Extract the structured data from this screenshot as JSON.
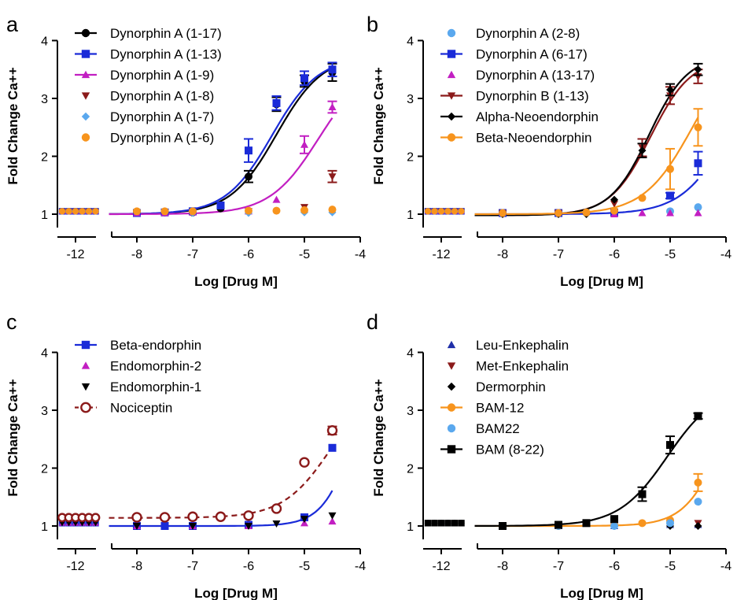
{
  "colors": {
    "black": "#000000",
    "blue": "#1a2bd8",
    "magenta": "#c21fc2",
    "darkred": "#8b1a1a",
    "lightblue": "#5aa8ee",
    "orange": "#f7941d",
    "navy": "#1f2fa8"
  },
  "chart_data": [
    {
      "panel": "a",
      "type": "scatter",
      "xlabel": "Log [Drug M]",
      "ylabel": "Fold Change Ca++",
      "ylim": [
        0.75,
        4
      ],
      "x_ticks": [
        "-8",
        "-7",
        "-6",
        "-5",
        "-4"
      ],
      "break_tick": "-12",
      "y_ticks": [
        "1",
        "2",
        "3",
        "4"
      ],
      "legend_position": "top-left",
      "series": [
        {
          "name": "Dynorphin A (1-17)",
          "color": "#000000",
          "marker": "circle",
          "fit": {
            "bottom": 1.0,
            "top": 3.75,
            "logEC50": -5.5,
            "hill": 1.05
          },
          "points": [
            {
              "x": -8,
              "y": 1.02
            },
            {
              "x": -7.5,
              "y": 1.03
            },
            {
              "x": -7,
              "y": 1.03
            },
            {
              "x": -6.5,
              "y": 1.1
            },
            {
              "x": -6,
              "y": 1.65,
              "err": 0.1
            },
            {
              "x": -5.5,
              "y": 2.9,
              "err": 0.12
            },
            {
              "x": -5,
              "y": 3.3,
              "err": 0.1
            },
            {
              "x": -4.5,
              "y": 3.45,
              "err": 0.15
            }
          ]
        },
        {
          "name": "Dynorphin A (1-13)",
          "color": "#1a2bd8",
          "marker": "square",
          "fit": {
            "bottom": 1.0,
            "top": 3.72,
            "logEC50": -5.58,
            "hill": 1.05
          },
          "points": [
            {
              "x": -8,
              "y": 1.02
            },
            {
              "x": -7.5,
              "y": 1.03
            },
            {
              "x": -7,
              "y": 1.05
            },
            {
              "x": -6.5,
              "y": 1.15
            },
            {
              "x": -6,
              "y": 2.1,
              "err": 0.2
            },
            {
              "x": -5.5,
              "y": 2.92,
              "err": 0.12
            },
            {
              "x": -5,
              "y": 3.35,
              "err": 0.12
            },
            {
              "x": -4.5,
              "y": 3.5,
              "err": 0.12
            }
          ]
        },
        {
          "name": "Dynorphin A (1-9)",
          "color": "#c21fc2",
          "marker": "triangle-up",
          "fit": {
            "bottom": 1.0,
            "top": 3.6,
            "logEC50": -4.75,
            "hill": 1.0
          },
          "points": [
            {
              "x": -8,
              "y": 1.02
            },
            {
              "x": -7.5,
              "y": 1.02
            },
            {
              "x": -7,
              "y": 1.03
            },
            {
              "x": -6,
              "y": 1.05
            },
            {
              "x": -5.5,
              "y": 1.25
            },
            {
              "x": -5,
              "y": 2.2,
              "err": 0.15
            },
            {
              "x": -4.5,
              "y": 2.85,
              "err": 0.1
            }
          ]
        },
        {
          "name": "Dynorphin A (1-8)",
          "color": "#8b1a1a",
          "marker": "triangle-down",
          "points": [
            {
              "x": -6,
              "y": 1.05
            },
            {
              "x": -5,
              "y": 1.12
            },
            {
              "x": -4.5,
              "y": 1.65,
              "err": 0.1
            }
          ]
        },
        {
          "name": "Dynorphin A (1-7)",
          "color": "#5aa8ee",
          "marker": "diamond",
          "points": [
            {
              "x": -7,
              "y": 1.02
            },
            {
              "x": -6,
              "y": 1.02
            },
            {
              "x": -5,
              "y": 1.03
            },
            {
              "x": -4.5,
              "y": 1.03
            }
          ]
        },
        {
          "name": "Dynorphin A (1-6)",
          "color": "#f7941d",
          "marker": "circle",
          "points": [
            {
              "x": -8,
              "y": 1.05
            },
            {
              "x": -7.5,
              "y": 1.05
            },
            {
              "x": -7,
              "y": 1.05
            },
            {
              "x": -6,
              "y": 1.06
            },
            {
              "x": -5.5,
              "y": 1.06
            },
            {
              "x": -5,
              "y": 1.07
            },
            {
              "x": -4.5,
              "y": 1.08
            }
          ]
        }
      ]
    },
    {
      "panel": "b",
      "type": "scatter",
      "xlabel": "Log [Drug M]",
      "ylabel": "Fold Change Ca++",
      "ylim": [
        0.75,
        4
      ],
      "x_ticks": [
        "-8",
        "-7",
        "-6",
        "-5",
        "-4"
      ],
      "break_tick": "-12",
      "y_ticks": [
        "1",
        "2",
        "3",
        "4"
      ],
      "legend_position": "top-left",
      "series": [
        {
          "name": "Dynorphin A (2-8)",
          "color": "#5aa8ee",
          "marker": "circle",
          "points": [
            {
              "x": -8,
              "y": 1.02
            },
            {
              "x": -7,
              "y": 1.02
            },
            {
              "x": -6,
              "y": 1.02
            },
            {
              "x": -5,
              "y": 1.05
            },
            {
              "x": -4.5,
              "y": 1.12
            }
          ]
        },
        {
          "name": "Dynorphin A (6-17)",
          "color": "#1a2bd8",
          "marker": "square",
          "fit": {
            "bottom": 1.0,
            "top": 4.0,
            "logEC50": -3.9,
            "hill": 1.0
          },
          "points": [
            {
              "x": -8,
              "y": 1.02
            },
            {
              "x": -7,
              "y": 1.02
            },
            {
              "x": -6,
              "y": 1.03
            },
            {
              "x": -5,
              "y": 1.32,
              "err": 0.05
            },
            {
              "x": -4.5,
              "y": 1.88,
              "err": 0.2
            }
          ]
        },
        {
          "name": "Dynorphin A (13-17)",
          "color": "#c21fc2",
          "marker": "triangle-up",
          "points": [
            {
              "x": -6,
              "y": 1.0
            },
            {
              "x": -5.5,
              "y": 1.02
            },
            {
              "x": -5,
              "y": 1.02
            },
            {
              "x": -4.5,
              "y": 1.02
            }
          ]
        },
        {
          "name": "Dynorphin B (1-13)",
          "color": "#8b1a1a",
          "marker": "triangle-down",
          "fit": {
            "bottom": 0.98,
            "top": 3.7,
            "logEC50": -5.35,
            "hill": 1.2
          },
          "points": [
            {
              "x": -8,
              "y": 1.02
            },
            {
              "x": -7,
              "y": 1.02
            },
            {
              "x": -6,
              "y": 1.18
            },
            {
              "x": -5.5,
              "y": 2.15,
              "err": 0.15
            },
            {
              "x": -5,
              "y": 3.05,
              "err": 0.15
            },
            {
              "x": -4.5,
              "y": 3.38,
              "err": 0.12
            }
          ]
        },
        {
          "name": "Alpha-Neoendorphin",
          "color": "#000000",
          "marker": "diamond",
          "fit": {
            "bottom": 0.98,
            "top": 3.75,
            "logEC50": -5.38,
            "hill": 1.25
          },
          "points": [
            {
              "x": -8,
              "y": 1.0
            },
            {
              "x": -7,
              "y": 1.0
            },
            {
              "x": -6.5,
              "y": 1.0
            },
            {
              "x": -6,
              "y": 1.25
            },
            {
              "x": -5.5,
              "y": 2.1,
              "err": 0.12
            },
            {
              "x": -5,
              "y": 3.15,
              "err": 0.1
            },
            {
              "x": -4.5,
              "y": 3.5,
              "err": 0.1
            }
          ]
        },
        {
          "name": "Beta-Neoendorphin",
          "color": "#f7941d",
          "marker": "circle",
          "fit": {
            "bottom": 1.0,
            "top": 4.0,
            "logEC50": -4.6,
            "hill": 1.0
          },
          "points": [
            {
              "x": -8,
              "y": 1.02
            },
            {
              "x": -7,
              "y": 1.02
            },
            {
              "x": -6.5,
              "y": 1.03
            },
            {
              "x": -6,
              "y": 1.06
            },
            {
              "x": -5.5,
              "y": 1.28
            },
            {
              "x": -5,
              "y": 1.78,
              "err": 0.35
            },
            {
              "x": -4.5,
              "y": 2.5,
              "err": 0.32
            }
          ]
        }
      ]
    },
    {
      "panel": "c",
      "type": "scatter",
      "xlabel": "Log [Drug M]",
      "ylabel": "Fold Change Ca++",
      "ylim": [
        0.75,
        4
      ],
      "x_ticks": [
        "-8",
        "-7",
        "-6",
        "-5",
        "-4"
      ],
      "break_tick": "-12",
      "y_ticks": [
        "1",
        "2",
        "3",
        "4"
      ],
      "legend_position": "top-left",
      "series": [
        {
          "name": "Beta-endorphin",
          "color": "#1a2bd8",
          "marker": "square",
          "fit": {
            "bottom": 1.0,
            "top": 4.5,
            "logEC50": -4.05,
            "hill": 1.5
          },
          "points": [
            {
              "x": -8,
              "y": 1.0
            },
            {
              "x": -7.5,
              "y": 1.0
            },
            {
              "x": -7,
              "y": 1.0
            },
            {
              "x": -6,
              "y": 1.02
            },
            {
              "x": -5,
              "y": 1.15
            },
            {
              "x": -4.5,
              "y": 2.35
            }
          ]
        },
        {
          "name": "Endomorphin-2",
          "color": "#c21fc2",
          "marker": "triangle-up",
          "points": [
            {
              "x": -8,
              "y": 1.0
            },
            {
              "x": -7,
              "y": 1.0
            },
            {
              "x": -6,
              "y": 1.0
            },
            {
              "x": -5,
              "y": 1.05
            },
            {
              "x": -4.5,
              "y": 1.08
            }
          ]
        },
        {
          "name": "Endomorphin-1",
          "color": "#000000",
          "marker": "triangle-down",
          "points": [
            {
              "x": -8,
              "y": 1.0
            },
            {
              "x": -7,
              "y": 1.0
            },
            {
              "x": -6,
              "y": 1.0
            },
            {
              "x": -5.5,
              "y": 1.04
            },
            {
              "x": -5,
              "y": 1.12
            },
            {
              "x": -4.5,
              "y": 1.18
            }
          ]
        },
        {
          "name": "Nociceptin",
          "color": "#8b1a1a",
          "marker": "open-circle",
          "dashed": true,
          "fit": {
            "bottom": 1.14,
            "top": 3.6,
            "logEC50": -4.5,
            "hill": 1.0
          },
          "points": [
            {
              "x": -8,
              "y": 1.15
            },
            {
              "x": -7.5,
              "y": 1.15
            },
            {
              "x": -7,
              "y": 1.16
            },
            {
              "x": -6.5,
              "y": 1.16
            },
            {
              "x": -6,
              "y": 1.18
            },
            {
              "x": -5.5,
              "y": 1.3
            },
            {
              "x": -5,
              "y": 2.1
            },
            {
              "x": -4.5,
              "y": 2.65,
              "err": 0.07
            }
          ]
        }
      ]
    },
    {
      "panel": "d",
      "type": "scatter",
      "xlabel": "Log [Drug M]",
      "ylabel": "Fold Change Ca++",
      "ylim": [
        0.75,
        4
      ],
      "x_ticks": [
        "-8",
        "-7",
        "-6",
        "-5",
        "-4"
      ],
      "break_tick": "-12",
      "y_ticks": [
        "1",
        "2",
        "3",
        "4"
      ],
      "legend_position": "top-left",
      "series": [
        {
          "name": "Leu-Enkephalin",
          "color": "#1f2fa8",
          "marker": "triangle-up",
          "points": [
            {
              "x": -8,
              "y": 1.0
            },
            {
              "x": -7,
              "y": 1.0
            },
            {
              "x": -6,
              "y": 1.0
            },
            {
              "x": -5,
              "y": 1.02
            },
            {
              "x": -4.5,
              "y": 1.02
            }
          ]
        },
        {
          "name": "Met-Enkephalin",
          "color": "#8b1a1a",
          "marker": "triangle-down",
          "points": [
            {
              "x": -8,
              "y": 1.0
            },
            {
              "x": -7,
              "y": 1.0
            },
            {
              "x": -6,
              "y": 1.0
            },
            {
              "x": -5,
              "y": 1.03
            },
            {
              "x": -4.5,
              "y": 1.05
            }
          ]
        },
        {
          "name": "Dermorphin",
          "color": "#000000",
          "marker": "diamond",
          "points": [
            {
              "x": -8,
              "y": 1.0
            },
            {
              "x": -7,
              "y": 1.0
            },
            {
              "x": -6,
              "y": 1.0
            },
            {
              "x": -5,
              "y": 1.0
            },
            {
              "x": -4.5,
              "y": 1.0
            }
          ]
        },
        {
          "name": "BAM-12",
          "color": "#f7941d",
          "marker": "circle",
          "fit": {
            "bottom": 1.0,
            "top": 4.0,
            "logEC50": -4.05,
            "hill": 1.3
          },
          "points": [
            {
              "x": -8,
              "y": 1.0
            },
            {
              "x": -7,
              "y": 1.0
            },
            {
              "x": -6,
              "y": 1.02
            },
            {
              "x": -5.5,
              "y": 1.05
            },
            {
              "x": -5,
              "y": 1.1
            },
            {
              "x": -4.5,
              "y": 1.75,
              "err": 0.15
            }
          ]
        },
        {
          "name": "BAM22",
          "color": "#5aa8ee",
          "marker": "circle",
          "points": [
            {
              "x": -8,
              "y": 1.0
            },
            {
              "x": -7,
              "y": 1.0
            },
            {
              "x": -6,
              "y": 1.0
            },
            {
              "x": -5,
              "y": 1.05
            },
            {
              "x": -4.5,
              "y": 1.42
            }
          ]
        },
        {
          "name": "BAM (8-22)",
          "color": "#000000",
          "marker": "square",
          "fit": {
            "bottom": 1.0,
            "top": 3.4,
            "logEC50": -5.05,
            "hill": 1.0
          },
          "points": [
            {
              "x": -8,
              "y": 1.0
            },
            {
              "x": -7,
              "y": 1.02
            },
            {
              "x": -6.5,
              "y": 1.05
            },
            {
              "x": -6,
              "y": 1.12
            },
            {
              "x": -5.5,
              "y": 1.55,
              "err": 0.12
            },
            {
              "x": -5,
              "y": 2.4,
              "err": 0.15
            },
            {
              "x": -4.5,
              "y": 2.9,
              "err": 0.05
            }
          ]
        }
      ]
    }
  ]
}
